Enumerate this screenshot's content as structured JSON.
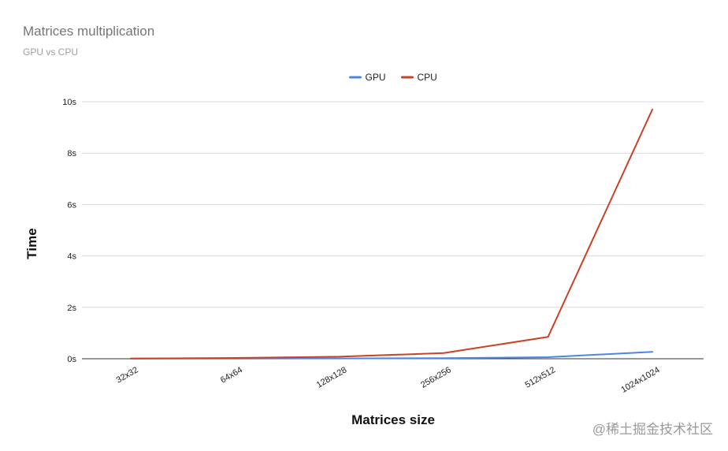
{
  "chart_data": {
    "type": "line",
    "title": "Matrices multiplication",
    "subtitle": "GPU vs CPU",
    "xlabel": "Matrices size",
    "ylabel": "Time",
    "categories": [
      "32x32",
      "64x64",
      "128x128",
      "256x256",
      "512x512",
      "1024x1024"
    ],
    "series": [
      {
        "name": "GPU",
        "color": "#4a86e8",
        "values": [
          0.005,
          0.008,
          0.012,
          0.02,
          0.06,
          0.27
        ]
      },
      {
        "name": "CPU",
        "color": "#cc4125",
        "values": [
          0.01,
          0.03,
          0.08,
          0.22,
          0.85,
          9.7
        ]
      }
    ],
    "ylim": [
      0,
      10
    ],
    "y_ticks": [
      0,
      2,
      4,
      6,
      8,
      10
    ],
    "y_tick_labels": [
      "0s",
      "2s",
      "4s",
      "6s",
      "8s",
      "10s"
    ],
    "grid": true,
    "legend_position": "top-center"
  },
  "watermark": "@稀土掘金技术社区"
}
